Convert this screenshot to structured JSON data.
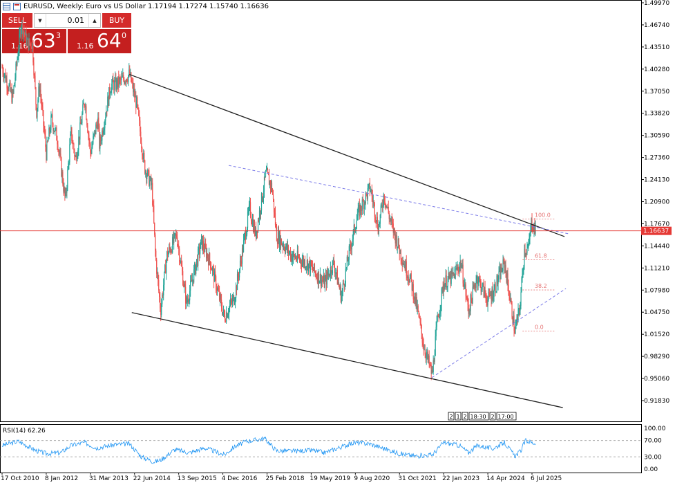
{
  "header": {
    "title": "EURUSD, Weekly:  Euro vs US Dollar  1.17194 1.17274 1.15740 1.16636"
  },
  "trade_panel": {
    "sell_label": "SELL",
    "buy_label": "BUY",
    "lot_value": "0.01",
    "sell_price": {
      "big": "1.16",
      "mid": "63",
      "sup": "3"
    },
    "buy_price": {
      "big": "1.16",
      "mid": "64",
      "sup": "0"
    }
  },
  "colors": {
    "bull": "#26a69a",
    "bear": "#ef5350",
    "trendline": "#222222",
    "dashed": "#7a7ae8",
    "fib": "#e57373",
    "current_price": "#e53935",
    "rsi": "#2196f3",
    "sell_bg": "#d42b2b"
  },
  "chart_data": [
    {
      "type": "candlestick",
      "title": "EURUSD, Weekly",
      "ylim": [
        0.895,
        1.5115
      ],
      "y_ticks": [
        "1.49970",
        "1.46740",
        "1.43510",
        "1.40280",
        "1.37050",
        "1.33820",
        "1.30590",
        "1.27360",
        "1.24130",
        "1.20900",
        "1.17670",
        "1.14440",
        "1.11210",
        "1.07980",
        "1.04750",
        "1.01520",
        "0.98290",
        "0.95060",
        "0.91830"
      ],
      "x_ticks": [
        "17 Oct 2010",
        "8 Jan 2012",
        "31 Mar 2013",
        "22 Jun 2014",
        "13 Sep 2015",
        "4 Dec 2016",
        "25 Feb 2018",
        "19 May 2019",
        "9 Aug 2020",
        "31 Oct 2021",
        "22 Jan 2023",
        "14 Apr 2024",
        "6 Jul 2025"
      ],
      "price_path": [
        [
          "2010-10-17",
          1.405
        ],
        [
          "2011-02-01",
          1.36
        ],
        [
          "2011-05-01",
          1.47
        ],
        [
          "2011-07-01",
          1.44
        ],
        [
          "2011-08-20",
          1.44
        ],
        [
          "2011-10-01",
          1.34
        ],
        [
          "2011-11-01",
          1.38
        ],
        [
          "2012-01-08",
          1.28
        ],
        [
          "2012-03-01",
          1.33
        ],
        [
          "2012-05-01",
          1.3
        ],
        [
          "2012-07-20",
          1.21
        ],
        [
          "2012-09-15",
          1.31
        ],
        [
          "2012-11-01",
          1.27
        ],
        [
          "2013-02-01",
          1.36
        ],
        [
          "2013-03-31",
          1.28
        ],
        [
          "2013-06-15",
          1.33
        ],
        [
          "2013-07-01",
          1.29
        ],
        [
          "2013-10-25",
          1.38
        ],
        [
          "2013-12-15",
          1.38
        ],
        [
          "2014-05-01",
          1.395
        ],
        [
          "2014-07-15",
          1.35
        ],
        [
          "2014-10-01",
          1.26
        ],
        [
          "2014-12-15",
          1.23
        ],
        [
          "2015-01-20",
          1.13
        ],
        [
          "2015-03-13",
          1.05
        ],
        [
          "2015-05-15",
          1.13
        ],
        [
          "2015-08-24",
          1.16
        ],
        [
          "2015-12-01",
          1.06
        ],
        [
          "2016-05-01",
          1.15
        ],
        [
          "2016-08-01",
          1.12
        ],
        [
          "2016-12-18",
          1.04
        ],
        [
          "2017-04-01",
          1.07
        ],
        [
          "2017-06-01",
          1.12
        ],
        [
          "2017-09-01",
          1.2
        ],
        [
          "2017-11-01",
          1.16
        ],
        [
          "2018-02-15",
          1.25
        ],
        [
          "2018-04-15",
          1.23
        ],
        [
          "2018-06-01",
          1.16
        ],
        [
          "2018-11-01",
          1.13
        ],
        [
          "2019-04-01",
          1.12
        ],
        [
          "2019-09-30",
          1.09
        ],
        [
          "2020-01-01",
          1.12
        ],
        [
          "2020-03-20",
          1.07
        ],
        [
          "2020-06-01",
          1.13
        ],
        [
          "2020-09-01",
          1.19
        ],
        [
          "2021-01-06",
          1.23
        ],
        [
          "2021-03-31",
          1.17
        ],
        [
          "2021-05-25",
          1.22
        ],
        [
          "2021-08-01",
          1.18
        ],
        [
          "2021-11-20",
          1.13
        ],
        [
          "2022-03-01",
          1.09
        ],
        [
          "2022-05-01",
          1.05
        ],
        [
          "2022-07-01",
          1.0
        ],
        [
          "2022-09-28",
          0.955
        ],
        [
          "2022-11-15",
          1.03
        ],
        [
          "2023-01-22",
          1.09
        ],
        [
          "2023-05-01",
          1.1
        ],
        [
          "2023-07-15",
          1.12
        ],
        [
          "2023-10-01",
          1.05
        ],
        [
          "2023-12-25",
          1.1
        ],
        [
          "2024-04-14",
          1.065
        ],
        [
          "2024-06-15",
          1.08
        ],
        [
          "2024-09-30",
          1.12
        ],
        [
          "2025-01-13",
          1.02
        ],
        [
          "2025-03-01",
          1.05
        ],
        [
          "2025-04-21",
          1.14
        ],
        [
          "2025-06-01",
          1.14
        ],
        [
          "2025-07-01",
          1.18
        ],
        [
          "2025-08-15",
          1.166
        ]
      ],
      "trendlines": [
        {
          "style": "solid",
          "from": [
            "2014-05-01",
            1.395
          ],
          "to": [
            "2026-06-01",
            1.158
          ]
        },
        {
          "style": "solid",
          "from": [
            "2014-05-25",
            1.047
          ],
          "to": [
            "2026-05-15",
            0.908
          ]
        },
        {
          "style": "dashed",
          "from": [
            "2017-02-01",
            1.262
          ],
          "to": [
            "2026-07-15",
            1.162
          ]
        },
        {
          "style": "dashed",
          "from": [
            "2022-09-25",
            0.952
          ],
          "to": [
            "2026-06-15",
            1.082
          ]
        }
      ],
      "fib_levels": [
        {
          "label": "100.0",
          "value": 1.1835
        },
        {
          "label": "61.8",
          "value": 1.124
        },
        {
          "label": "38.2",
          "value": 1.08
        },
        {
          "label": "0.0",
          "value": 1.02
        }
      ],
      "current_price": {
        "label": "1.16637",
        "value": 1.16637
      },
      "event_markers": [
        "2",
        "1",
        "2",
        "18:30",
        "2",
        "17:00"
      ]
    },
    {
      "type": "line",
      "title": "RSI(14) 62.26",
      "ylim": [
        0,
        100
      ],
      "y_ticks": [
        "100.00",
        "70.00",
        "30.00",
        "0.00"
      ],
      "levels": [
        70,
        30
      ],
      "rsi_path": [
        [
          "2010-10-17",
          58
        ],
        [
          "2011-04-01",
          68
        ],
        [
          "2011-10-01",
          45
        ],
        [
          "2012-01-08",
          38
        ],
        [
          "2012-06-01",
          40
        ],
        [
          "2012-09-15",
          58
        ],
        [
          "2013-02-01",
          65
        ],
        [
          "2013-06-01",
          52
        ],
        [
          "2013-12-01",
          60
        ],
        [
          "2014-05-01",
          62
        ],
        [
          "2014-09-01",
          30
        ],
        [
          "2015-01-01",
          18
        ],
        [
          "2015-03-13",
          22
        ],
        [
          "2015-08-01",
          48
        ],
        [
          "2016-01-01",
          40
        ],
        [
          "2016-06-01",
          52
        ],
        [
          "2016-12-18",
          35
        ],
        [
          "2017-04-01",
          55
        ],
        [
          "2017-08-01",
          68
        ],
        [
          "2018-02-01",
          75
        ],
        [
          "2018-06-01",
          45
        ],
        [
          "2018-12-01",
          44
        ],
        [
          "2019-06-01",
          46
        ],
        [
          "2019-10-01",
          40
        ],
        [
          "2020-01-01",
          48
        ],
        [
          "2020-08-01",
          65
        ],
        [
          "2021-01-01",
          62
        ],
        [
          "2021-06-01",
          50
        ],
        [
          "2021-11-01",
          38
        ],
        [
          "2022-04-01",
          32
        ],
        [
          "2022-09-28",
          35
        ],
        [
          "2023-01-22",
          65
        ],
        [
          "2023-07-01",
          58
        ],
        [
          "2023-10-01",
          40
        ],
        [
          "2024-01-01",
          58
        ],
        [
          "2024-06-01",
          50
        ],
        [
          "2024-09-30",
          65
        ],
        [
          "2025-01-13",
          32
        ],
        [
          "2025-03-15",
          45
        ],
        [
          "2025-05-01",
          70
        ],
        [
          "2025-08-15",
          62
        ]
      ]
    }
  ]
}
